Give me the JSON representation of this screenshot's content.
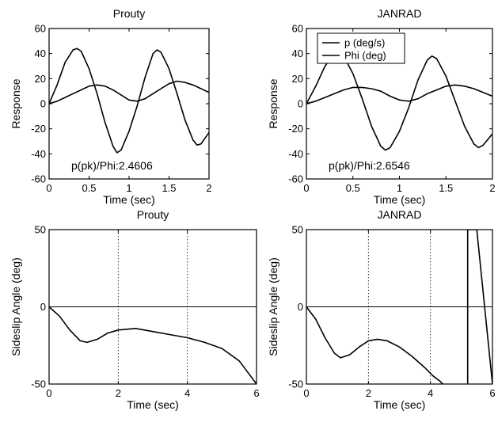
{
  "chart_data": [
    {
      "type": "line",
      "title": "Prouty",
      "xlabel": "Time (sec)",
      "ylabel": "Response",
      "xlim": [
        0,
        2
      ],
      "ylim": [
        -60,
        60
      ],
      "xticks": [
        0,
        0.5,
        1,
        1.5,
        2
      ],
      "yticks": [
        -60,
        -40,
        -20,
        0,
        20,
        40,
        60
      ],
      "grid": false,
      "zero_line": false,
      "annotation": "p(pk)/Phi:2.4606",
      "series": [
        {
          "x": [
            0,
            0.1,
            0.2,
            0.3,
            0.35,
            0.4,
            0.5,
            0.6,
            0.7,
            0.8,
            0.85,
            0.9,
            1.0,
            1.1,
            1.2,
            1.3,
            1.35,
            1.4,
            1.5,
            1.6,
            1.7,
            1.8,
            1.85,
            1.9,
            2.0
          ],
          "y": [
            0,
            15,
            33,
            43,
            44,
            42,
            28,
            8,
            -15,
            -34,
            -39,
            -37,
            -22,
            -2,
            21,
            40,
            43,
            41,
            28,
            8,
            -13,
            -29,
            -33,
            -32,
            -23
          ]
        },
        {
          "x": [
            0,
            0.1,
            0.2,
            0.3,
            0.4,
            0.5,
            0.6,
            0.7,
            0.8,
            0.9,
            1.0,
            1.1,
            1.2,
            1.3,
            1.4,
            1.5,
            1.6,
            1.7,
            1.8,
            1.9,
            2.0
          ],
          "y": [
            0,
            2,
            5,
            8,
            11,
            14,
            15,
            14,
            11,
            7,
            3,
            2,
            4,
            8,
            12,
            16,
            18,
            17,
            15,
            12,
            9
          ]
        }
      ]
    },
    {
      "type": "line",
      "title": "JANRAD",
      "xlabel": "Time (sec)",
      "ylabel": "Response",
      "xlim": [
        0,
        2
      ],
      "ylim": [
        -60,
        60
      ],
      "xticks": [
        0,
        0.5,
        1,
        1.5,
        2
      ],
      "yticks": [
        -60,
        -40,
        -20,
        0,
        20,
        40,
        60
      ],
      "grid": false,
      "zero_line": false,
      "annotation": "p(pk)/Phi:2.6546",
      "legend": {
        "position": "top-left",
        "entries": [
          "p (deg/s)",
          "Phi (deg)"
        ]
      },
      "series": [
        {
          "name": "p (deg/s)",
          "x": [
            0,
            0.1,
            0.2,
            0.3,
            0.35,
            0.4,
            0.5,
            0.6,
            0.7,
            0.8,
            0.85,
            0.9,
            1.0,
            1.1,
            1.2,
            1.3,
            1.35,
            1.4,
            1.5,
            1.6,
            1.7,
            1.8,
            1.85,
            1.9,
            2.0
          ],
          "y": [
            0,
            14,
            30,
            40,
            41,
            38,
            24,
            4,
            -18,
            -34,
            -37,
            -35,
            -22,
            -3,
            19,
            35,
            38,
            36,
            22,
            2,
            -18,
            -32,
            -35,
            -33,
            -24
          ]
        },
        {
          "name": "Phi (deg)",
          "x": [
            0,
            0.1,
            0.2,
            0.3,
            0.4,
            0.5,
            0.6,
            0.7,
            0.8,
            0.9,
            1.0,
            1.1,
            1.2,
            1.3,
            1.4,
            1.5,
            1.6,
            1.7,
            1.8,
            1.9,
            2.0
          ],
          "y": [
            0,
            2,
            5,
            8,
            11,
            13,
            13,
            12,
            10,
            6,
            3,
            2,
            4,
            8,
            11,
            14,
            15,
            14,
            12,
            9,
            6
          ]
        }
      ]
    },
    {
      "type": "line",
      "title": "Prouty",
      "xlabel": "Time (sec)",
      "ylabel": "Sideslip Angle (deg)",
      "xlim": [
        0,
        6
      ],
      "ylim": [
        -50,
        50
      ],
      "xticks": [
        0,
        2,
        4,
        6
      ],
      "yticks": [
        -50,
        0,
        50
      ],
      "grid": true,
      "zero_line": true,
      "annotation": "",
      "series": [
        {
          "x": [
            0,
            0.3,
            0.6,
            0.9,
            1.1,
            1.4,
            1.7,
            2.0,
            2.5,
            3.0,
            3.5,
            4.0,
            4.5,
            5.0,
            5.5,
            5.8,
            6.0
          ],
          "y": [
            0,
            -6,
            -15,
            -22,
            -23,
            -21,
            -17,
            -15,
            -14,
            -16,
            -18,
            -20,
            -23,
            -27,
            -35,
            -44,
            -50
          ]
        }
      ]
    },
    {
      "type": "line",
      "title": "JANRAD",
      "xlabel": "Time (sec)",
      "ylabel": "Sideslip Angle (deg)",
      "xlim": [
        0,
        6
      ],
      "ylim": [
        -50,
        50
      ],
      "xticks": [
        0,
        2,
        4,
        6
      ],
      "yticks": [
        -50,
        0,
        50
      ],
      "grid": true,
      "zero_line": true,
      "annotation": "",
      "series": [
        {
          "x": [
            0,
            0.3,
            0.6,
            0.9,
            1.1,
            1.4,
            1.7,
            2.0,
            2.3,
            2.6,
            3.0,
            3.4,
            3.8,
            4.1,
            4.3,
            4.4
          ],
          "y": [
            0,
            -8,
            -20,
            -30,
            -33,
            -31,
            -26,
            -22,
            -21,
            -22,
            -26,
            -32,
            -39,
            -45,
            -48,
            -50
          ]
        },
        {
          "x": [
            5.2,
            5.2,
            5.5,
            5.5,
            6.0,
            6.0
          ],
          "y": [
            -50,
            50,
            50,
            49,
            -50,
            -50
          ]
        }
      ]
    }
  ]
}
